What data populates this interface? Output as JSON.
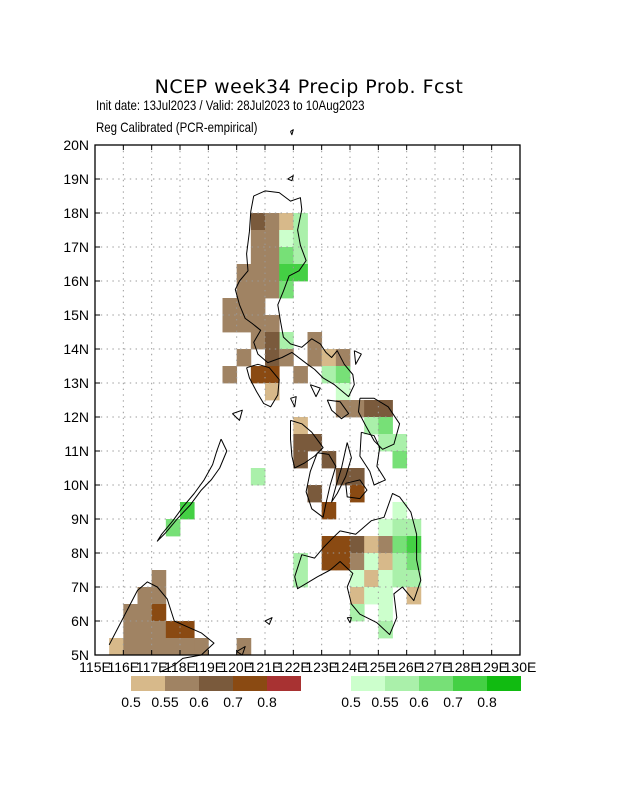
{
  "header": {
    "title": "NCEP week34 Precip Prob. Fcst",
    "subtitle_1": "Init date: 13Jul2023 / Valid: 28Jul2023 to 10Aug2023",
    "subtitle_2": "Reg Calibrated (PCR-empirical)"
  },
  "map": {
    "region": "Philippines",
    "lon_range": [
      115,
      130
    ],
    "lat_range": [
      5,
      20
    ],
    "grid": true,
    "lat_labels": [
      "5N",
      "6N",
      "7N",
      "8N",
      "9N",
      "10N",
      "11N",
      "12N",
      "13N",
      "14N",
      "15N",
      "16N",
      "17N",
      "18N",
      "19N",
      "20N"
    ],
    "lon_labels": [
      "115E",
      "116E",
      "117E",
      "118E",
      "119E",
      "120E",
      "121E",
      "122E",
      "123E",
      "124E",
      "125E",
      "126E",
      "127E",
      "128E",
      "129E",
      "130E"
    ]
  },
  "colors": {
    "dry": [
      "#d7b98a",
      "#a08363",
      "#7a5a3c",
      "#8a4a12",
      "#a83232"
    ],
    "wet": [
      "#ccffcc",
      "#aaf0aa",
      "#77e077",
      "#44d044",
      "#11bb11"
    ]
  },
  "legend": {
    "dry_labels": [
      "0.5",
      "0.55",
      "0.6",
      "0.7",
      "0.8"
    ],
    "wet_labels": [
      "0.5",
      "0.55",
      "0.6",
      "0.7",
      "0.8"
    ]
  },
  "chart_data": {
    "type": "heatmap",
    "title": "NCEP week34 Precip Prob. Fcst",
    "cell_size_deg": 0.5,
    "category_dry": "below-normal probability classes (brown)",
    "category_wet": "above-normal probability classes (green)",
    "cells": [
      {
        "lon": 120.5,
        "lat": 17.5,
        "c": "D2"
      },
      {
        "lon": 121.0,
        "lat": 17.5,
        "c": "D1"
      },
      {
        "lon": 121.5,
        "lat": 17.5,
        "c": "D0"
      },
      {
        "lon": 122.0,
        "lat": 17.5,
        "c": "W1"
      },
      {
        "lon": 120.5,
        "lat": 17.0,
        "c": "D1"
      },
      {
        "lon": 121.0,
        "lat": 17.0,
        "c": "D1"
      },
      {
        "lon": 121.5,
        "lat": 17.0,
        "c": "W0"
      },
      {
        "lon": 122.0,
        "lat": 17.0,
        "c": "W1"
      },
      {
        "lon": 120.5,
        "lat": 16.5,
        "c": "D1"
      },
      {
        "lon": 121.0,
        "lat": 16.5,
        "c": "D1"
      },
      {
        "lon": 121.5,
        "lat": 16.5,
        "c": "W2"
      },
      {
        "lon": 122.0,
        "lat": 16.5,
        "c": "W1"
      },
      {
        "lon": 120.0,
        "lat": 16.0,
        "c": "D1"
      },
      {
        "lon": 120.5,
        "lat": 16.0,
        "c": "D1"
      },
      {
        "lon": 121.0,
        "lat": 16.0,
        "c": "D1"
      },
      {
        "lon": 121.5,
        "lat": 16.0,
        "c": "W3"
      },
      {
        "lon": 122.0,
        "lat": 16.0,
        "c": "W3"
      },
      {
        "lon": 120.0,
        "lat": 15.5,
        "c": "D1"
      },
      {
        "lon": 120.5,
        "lat": 15.5,
        "c": "D1"
      },
      {
        "lon": 121.0,
        "lat": 15.5,
        "c": "D1"
      },
      {
        "lon": 121.5,
        "lat": 15.5,
        "c": "W2"
      },
      {
        "lon": 119.5,
        "lat": 15.0,
        "c": "D1"
      },
      {
        "lon": 120.0,
        "lat": 15.0,
        "c": "D1"
      },
      {
        "lon": 120.5,
        "lat": 15.0,
        "c": "D1"
      },
      {
        "lon": 119.5,
        "lat": 14.5,
        "c": "D1"
      },
      {
        "lon": 120.0,
        "lat": 14.5,
        "c": "D1"
      },
      {
        "lon": 120.5,
        "lat": 14.5,
        "c": "D1"
      },
      {
        "lon": 121.0,
        "lat": 14.5,
        "c": "D1"
      },
      {
        "lon": 121.5,
        "lat": 14.0,
        "c": "W1"
      },
      {
        "lon": 120.5,
        "lat": 14.0,
        "c": "D1"
      },
      {
        "lon": 121.0,
        "lat": 14.0,
        "c": "D2"
      },
      {
        "lon": 122.5,
        "lat": 14.0,
        "c": "D1"
      },
      {
        "lon": 120.0,
        "lat": 13.5,
        "c": "D1"
      },
      {
        "lon": 121.0,
        "lat": 13.5,
        "c": "D2"
      },
      {
        "lon": 121.5,
        "lat": 13.5,
        "c": "D1"
      },
      {
        "lon": 122.5,
        "lat": 13.5,
        "c": "D1"
      },
      {
        "lon": 123.0,
        "lat": 13.5,
        "c": "D0"
      },
      {
        "lon": 123.5,
        "lat": 13.5,
        "c": "D1"
      },
      {
        "lon": 119.5,
        "lat": 13.0,
        "c": "D1"
      },
      {
        "lon": 120.5,
        "lat": 13.0,
        "c": "D3"
      },
      {
        "lon": 121.0,
        "lat": 13.0,
        "c": "D3"
      },
      {
        "lon": 122.0,
        "lat": 13.0,
        "c": "D1"
      },
      {
        "lon": 123.0,
        "lat": 13.0,
        "c": "W1"
      },
      {
        "lon": 123.5,
        "lat": 13.0,
        "c": "W2"
      },
      {
        "lon": 121.0,
        "lat": 12.5,
        "c": "D0"
      },
      {
        "lon": 123.5,
        "lat": 12.5,
        "c": "W0"
      },
      {
        "lon": 124.0,
        "lat": 12.0,
        "c": "D1"
      },
      {
        "lon": 124.5,
        "lat": 12.0,
        "c": "D2"
      },
      {
        "lon": 125.0,
        "lat": 12.0,
        "c": "D2"
      },
      {
        "lon": 123.5,
        "lat": 12.0,
        "c": "D1"
      },
      {
        "lon": 122.0,
        "lat": 11.5,
        "c": "D0"
      },
      {
        "lon": 124.5,
        "lat": 11.5,
        "c": "W1"
      },
      {
        "lon": 125.0,
        "lat": 11.5,
        "c": "W2"
      },
      {
        "lon": 122.0,
        "lat": 11.0,
        "c": "D2"
      },
      {
        "lon": 122.5,
        "lat": 11.0,
        "c": "D2"
      },
      {
        "lon": 125.0,
        "lat": 11.0,
        "c": "W1"
      },
      {
        "lon": 125.5,
        "lat": 11.0,
        "c": "W1"
      },
      {
        "lon": 122.0,
        "lat": 10.5,
        "c": "D2"
      },
      {
        "lon": 123.0,
        "lat": 10.5,
        "c": "D2"
      },
      {
        "lon": 125.5,
        "lat": 10.5,
        "c": "W2"
      },
      {
        "lon": 123.5,
        "lat": 10.0,
        "c": "D2"
      },
      {
        "lon": 124.0,
        "lat": 10.0,
        "c": "D2"
      },
      {
        "lon": 122.5,
        "lat": 9.5,
        "c": "D2"
      },
      {
        "lon": 124.0,
        "lat": 9.5,
        "c": "D3"
      },
      {
        "lon": 120.5,
        "lat": 10.0,
        "c": "W1"
      },
      {
        "lon": 123.0,
        "lat": 9.0,
        "c": "D3"
      },
      {
        "lon": 125.5,
        "lat": 9.0,
        "c": "W0"
      },
      {
        "lon": 118.0,
        "lat": 9.0,
        "c": "W3"
      },
      {
        "lon": 117.5,
        "lat": 8.5,
        "c": "W2"
      },
      {
        "lon": 125.0,
        "lat": 8.5,
        "c": "W0"
      },
      {
        "lon": 125.5,
        "lat": 8.5,
        "c": "W1"
      },
      {
        "lon": 126.0,
        "lat": 8.5,
        "c": "W1"
      },
      {
        "lon": 123.0,
        "lat": 8.0,
        "c": "D3"
      },
      {
        "lon": 123.5,
        "lat": 8.0,
        "c": "D3"
      },
      {
        "lon": 124.0,
        "lat": 8.0,
        "c": "D2"
      },
      {
        "lon": 124.5,
        "lat": 8.0,
        "c": "D0"
      },
      {
        "lon": 125.0,
        "lat": 8.0,
        "c": "D1"
      },
      {
        "lon": 125.5,
        "lat": 8.0,
        "c": "W2"
      },
      {
        "lon": 126.0,
        "lat": 8.0,
        "c": "W3"
      },
      {
        "lon": 122.0,
        "lat": 7.5,
        "c": "W1"
      },
      {
        "lon": 123.0,
        "lat": 7.5,
        "c": "D3"
      },
      {
        "lon": 123.5,
        "lat": 7.5,
        "c": "D3"
      },
      {
        "lon": 124.0,
        "lat": 7.5,
        "c": "D1"
      },
      {
        "lon": 124.5,
        "lat": 7.5,
        "c": "W0"
      },
      {
        "lon": 125.0,
        "lat": 7.5,
        "c": "D0"
      },
      {
        "lon": 125.5,
        "lat": 7.5,
        "c": "W1"
      },
      {
        "lon": 126.0,
        "lat": 7.5,
        "c": "W2"
      },
      {
        "lon": 122.0,
        "lat": 7.0,
        "c": "W1"
      },
      {
        "lon": 124.0,
        "lat": 7.0,
        "c": "W0"
      },
      {
        "lon": 124.5,
        "lat": 7.0,
        "c": "D0"
      },
      {
        "lon": 125.0,
        "lat": 7.0,
        "c": "W0"
      },
      {
        "lon": 125.5,
        "lat": 7.0,
        "c": "W1"
      },
      {
        "lon": 126.0,
        "lat": 7.0,
        "c": "W1"
      },
      {
        "lon": 124.0,
        "lat": 6.5,
        "c": "D0"
      },
      {
        "lon": 124.5,
        "lat": 6.5,
        "c": "W0"
      },
      {
        "lon": 125.0,
        "lat": 6.5,
        "c": "W0"
      },
      {
        "lon": 126.0,
        "lat": 6.5,
        "c": "D0"
      },
      {
        "lon": 124.0,
        "lat": 6.0,
        "c": "W1"
      },
      {
        "lon": 125.0,
        "lat": 6.0,
        "c": "W0"
      },
      {
        "lon": 125.0,
        "lat": 5.5,
        "c": "W1"
      },
      {
        "lon": 117.0,
        "lat": 7.0,
        "c": "D1"
      },
      {
        "lon": 116.5,
        "lat": 6.5,
        "c": "D1"
      },
      {
        "lon": 117.0,
        "lat": 6.5,
        "c": "D1"
      },
      {
        "lon": 116.0,
        "lat": 6.0,
        "c": "D1"
      },
      {
        "lon": 116.5,
        "lat": 6.0,
        "c": "D1"
      },
      {
        "lon": 117.0,
        "lat": 6.0,
        "c": "D3"
      },
      {
        "lon": 116.0,
        "lat": 5.5,
        "c": "D1"
      },
      {
        "lon": 116.5,
        "lat": 5.5,
        "c": "D1"
      },
      {
        "lon": 117.0,
        "lat": 5.5,
        "c": "D1"
      },
      {
        "lon": 117.5,
        "lat": 5.5,
        "c": "D3"
      },
      {
        "lon": 118.0,
        "lat": 5.5,
        "c": "D3"
      },
      {
        "lon": 115.5,
        "lat": 5.0,
        "c": "D0"
      },
      {
        "lon": 116.0,
        "lat": 5.0,
        "c": "D1"
      },
      {
        "lon": 116.5,
        "lat": 5.0,
        "c": "D1"
      },
      {
        "lon": 117.0,
        "lat": 5.0,
        "c": "D1"
      },
      {
        "lon": 117.5,
        "lat": 5.0,
        "c": "D1"
      },
      {
        "lon": 118.0,
        "lat": 5.0,
        "c": "D1"
      },
      {
        "lon": 118.5,
        "lat": 5.0,
        "c": "D1"
      },
      {
        "lon": 120.0,
        "lat": 5.0,
        "c": "D1"
      }
    ]
  }
}
